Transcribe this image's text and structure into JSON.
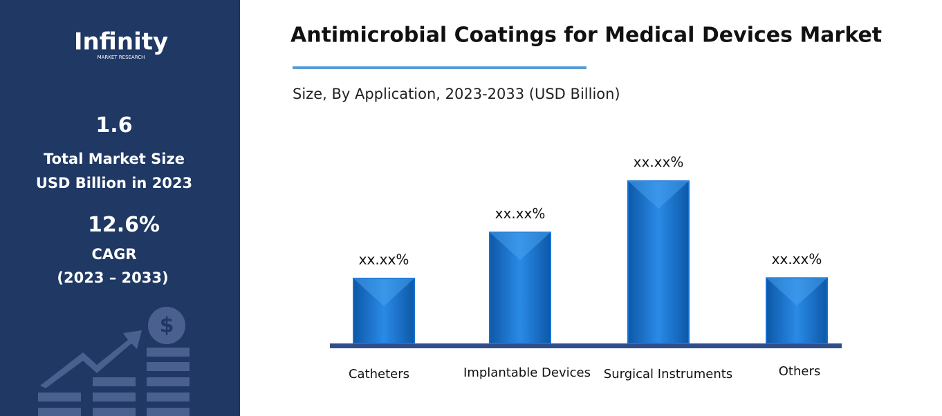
{
  "brand": {
    "name": "Infinity",
    "tagline": "MARKET RESEARCH"
  },
  "stats": {
    "market_size": "1.6",
    "market_size_label_1": "Total Market Size",
    "market_size_label_2": "USD Billion in 2023",
    "cagr": "12.6%",
    "cagr_label": "CAGR",
    "cagr_period": "(2023 – 2033)"
  },
  "chart_data": {
    "type": "bar",
    "title": "Antimicrobial Coatings for Medical Devices Market",
    "subtitle": "Size, By Application, 2023-2033 (USD Billion)",
    "categories": [
      "Catheters",
      "Implantable Devices",
      "Surgical Instruments",
      "Others"
    ],
    "values": [
      16.1,
      27.5,
      40.2,
      16.2
    ],
    "value_labels": [
      "xx.xx%",
      "xx.xx%",
      "xx.xx%",
      "xx.xx%"
    ],
    "color": "#1872d0",
    "ylim": [
      0,
      45
    ]
  }
}
